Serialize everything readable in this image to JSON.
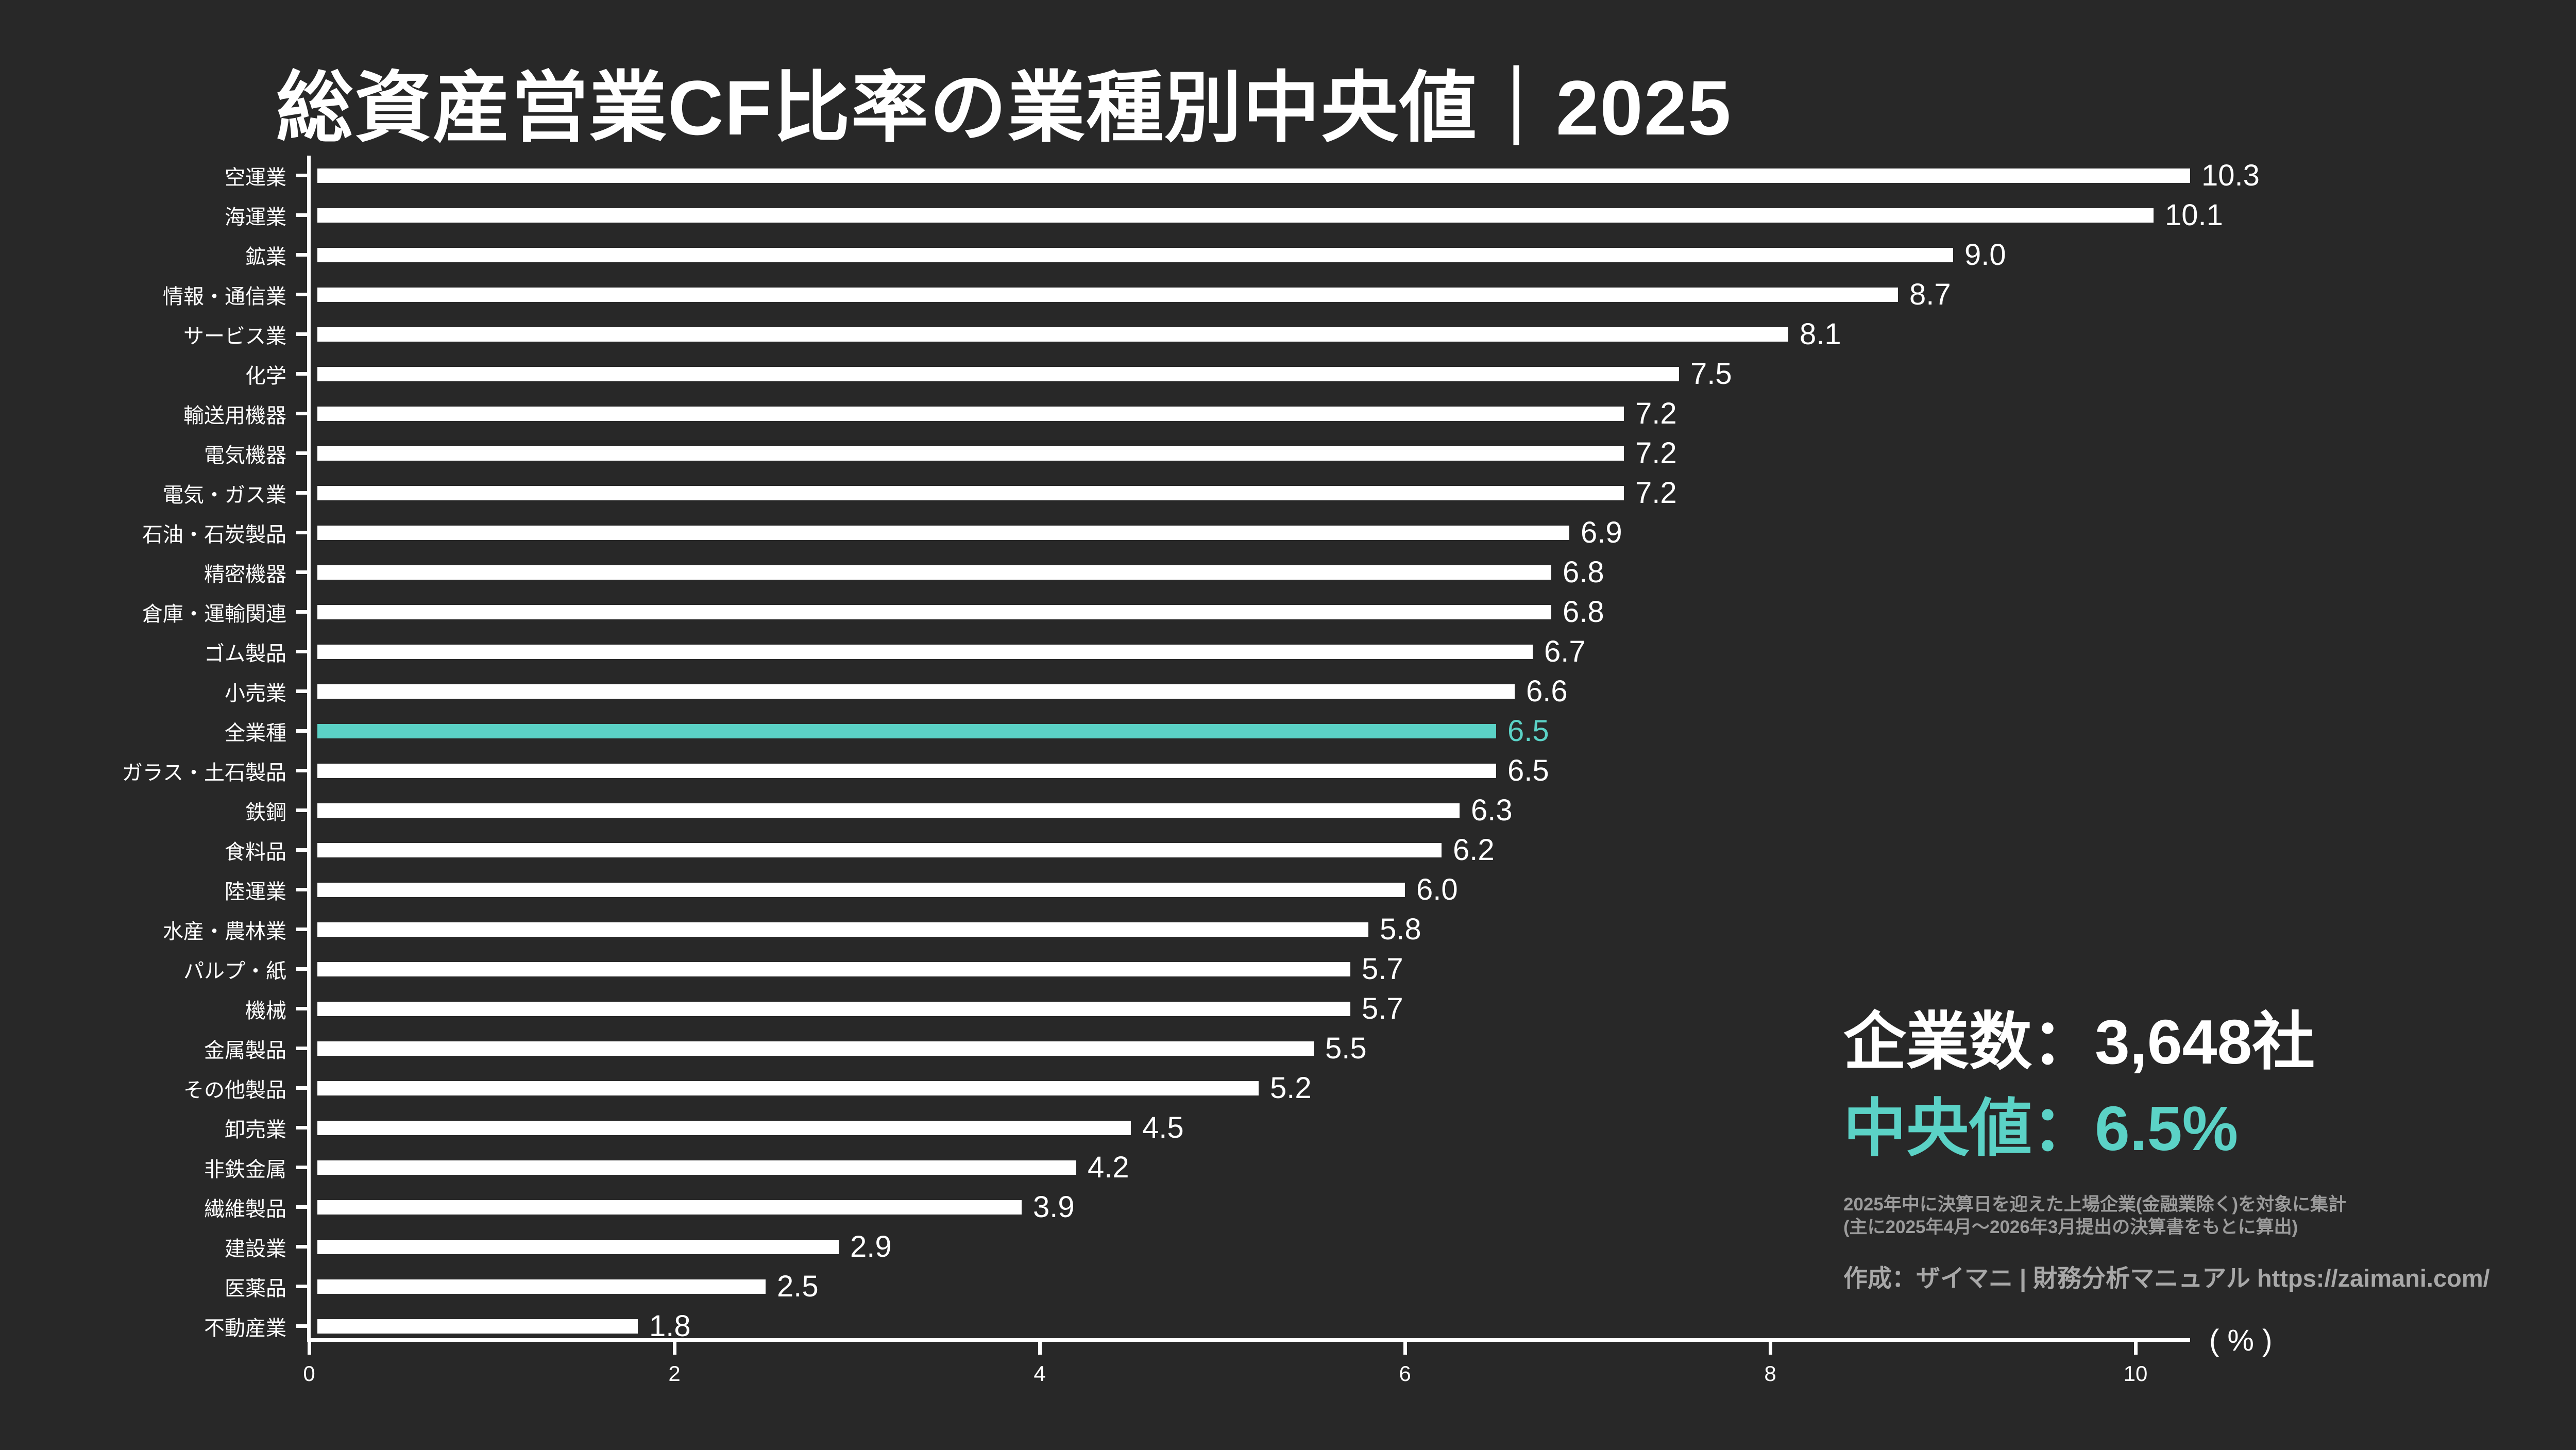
{
  "title": "総資産営業CF比率の業種別中央値｜2025",
  "colors": {
    "background": "#282828",
    "bar": "#ffffff",
    "highlight": "#5bd2c6",
    "footnote_text": "#9b9b9b",
    "credit_text": "#a8a8a8"
  },
  "chart_data": {
    "type": "bar",
    "orientation": "horizontal",
    "unit": "%",
    "title": "総資産営業CF比率の業種別中央値｜2025",
    "categories": [
      "空運業",
      "海運業",
      "鉱業",
      "情報・通信業",
      "サービス業",
      "化学",
      "輸送用機器",
      "電気機器",
      "電気・ガス業",
      "石油・石炭製品",
      "精密機器",
      "倉庫・運輸関連",
      "ゴム製品",
      "小売業",
      "全業種",
      "ガラス・土石製品",
      "鉄鋼",
      "食料品",
      "陸運業",
      "水産・農林業",
      "パルプ・紙",
      "機械",
      "金属製品",
      "その他製品",
      "卸売業",
      "非鉄金属",
      "繊維製品",
      "建設業",
      "医薬品",
      "不動産業"
    ],
    "values": [
      10.3,
      10.1,
      9.0,
      8.7,
      8.1,
      7.5,
      7.2,
      7.2,
      7.2,
      6.9,
      6.8,
      6.8,
      6.7,
      6.6,
      6.5,
      6.5,
      6.3,
      6.2,
      6.0,
      5.8,
      5.7,
      5.7,
      5.5,
      5.2,
      4.5,
      4.2,
      3.9,
      2.9,
      2.5,
      1.8
    ],
    "highlight_index": 14,
    "highlight_category": "全業種",
    "value_decimals": 1,
    "x_ticks": [
      0,
      2,
      4,
      6,
      8,
      10
    ],
    "xlim": [
      0,
      10.3
    ],
    "x_axis_unit_label": "( % )",
    "grid": false,
    "legend": false
  },
  "stats": {
    "companies": "企業数：3,648社",
    "median": "中央値：6.5%"
  },
  "footnote": {
    "line1": "2025年中に決算日を迎えた上場企業(金融業除く)を対象に集計",
    "line2": "(主に2025年4月～2026年3月提出の決算書をもとに算出)",
    "credit": "作成：ザイマニ | 財務分析マニュアル https://zaimani.com/"
  }
}
